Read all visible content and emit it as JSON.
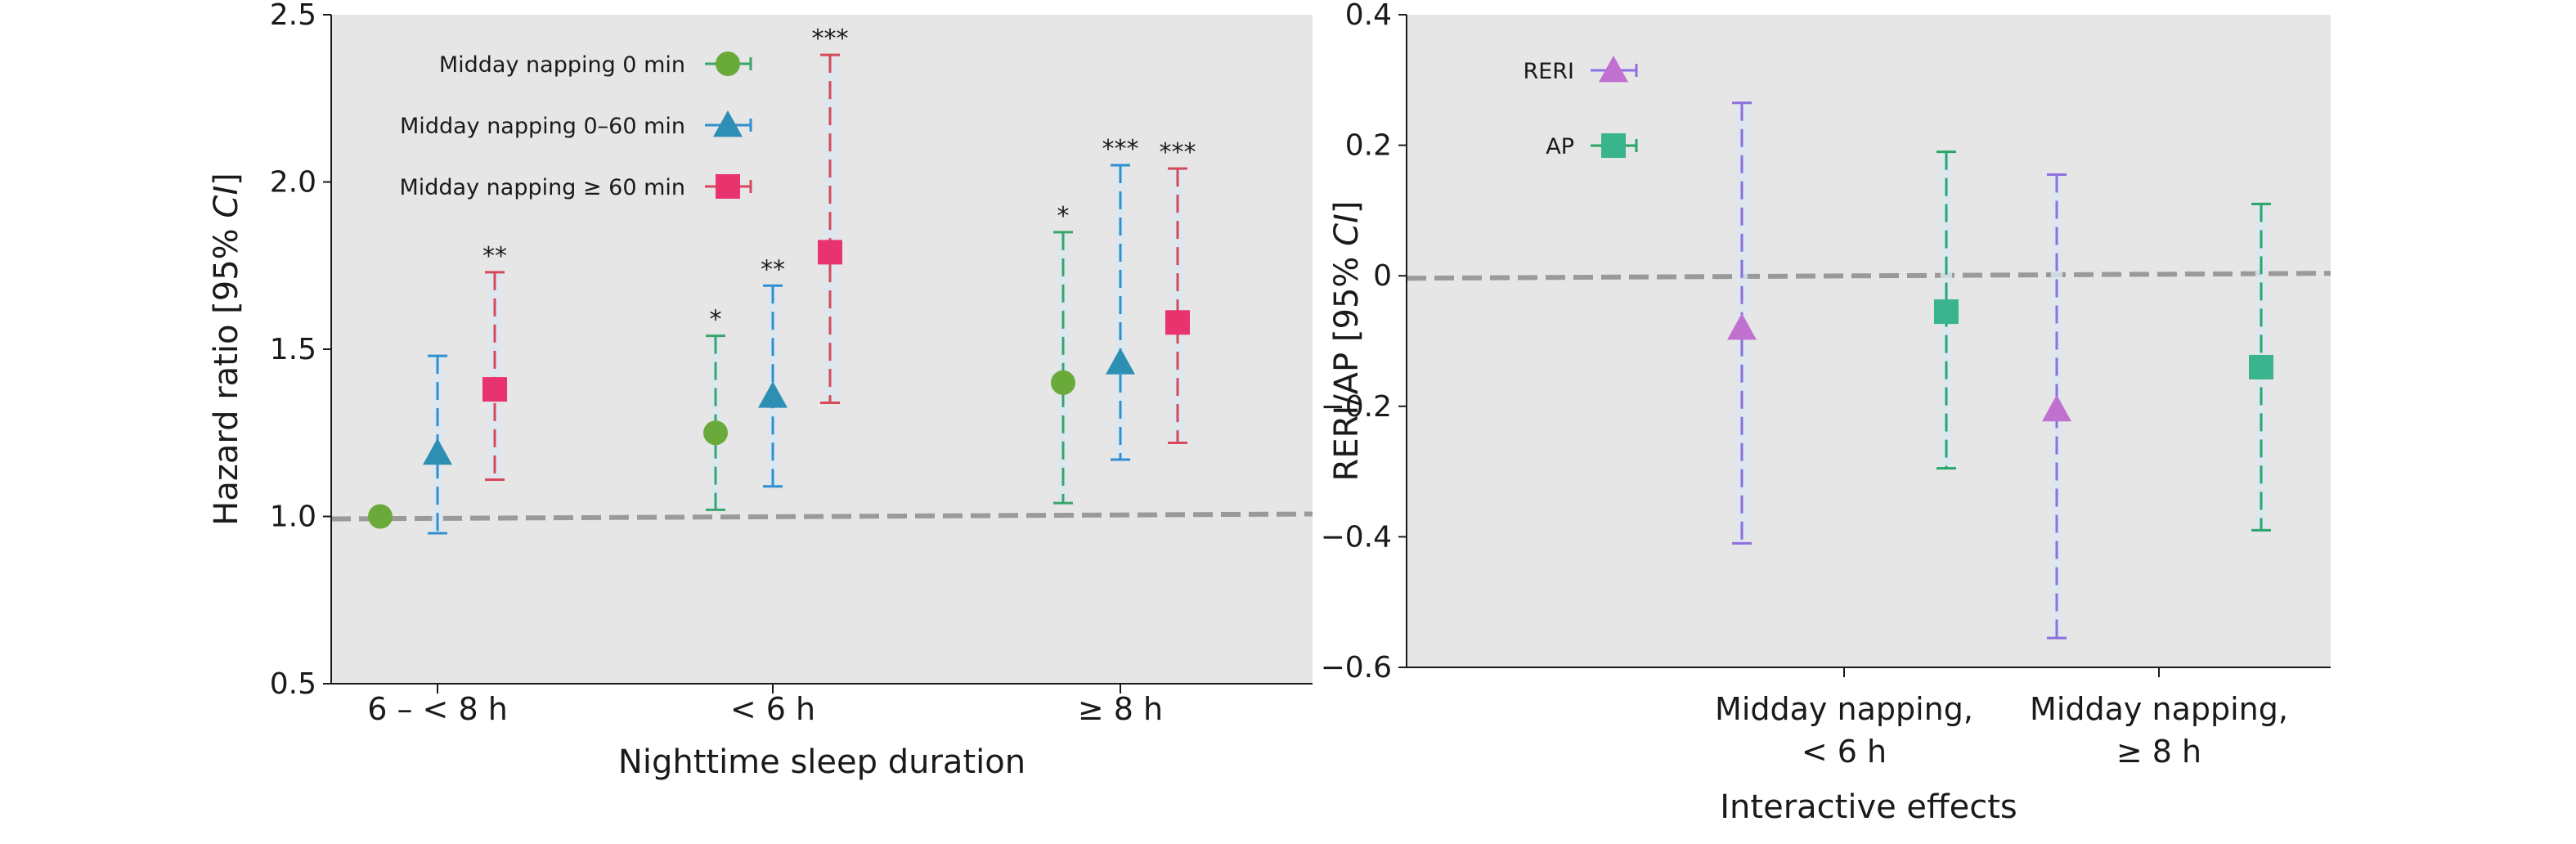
{
  "chart_data": [
    {
      "type": "scatter",
      "subtype": "error-bar plot",
      "xlabel": "Nighttime sleep duration",
      "ylabel_prefix": "Hazard ratio [95% ",
      "ylabel_italic": "CI",
      "ylabel_suffix": "]",
      "categories": [
        "6 – < 8 h",
        "< 6 h",
        "≥ 8 h"
      ],
      "ylim": [
        0.5,
        2.5
      ],
      "yticks": [
        "0.5",
        "1.0",
        "1.5",
        "2.0",
        "2.5"
      ],
      "reference_line": 1.0,
      "background_color": "#e6e6e6",
      "legend_position": "top-left",
      "series": [
        {
          "name": "Midday napping 0 min",
          "marker": "circle",
          "color": "#6aaa3a",
          "errorbar_color": "#3aa56a",
          "values": [
            1.0,
            1.25,
            1.4
          ],
          "lower": [
            1.0,
            1.02,
            1.04
          ],
          "upper": [
            1.0,
            1.54,
            1.85
          ],
          "significance": [
            "",
            "*",
            "*"
          ]
        },
        {
          "name": "Midday napping 0–60 min",
          "marker": "triangle",
          "color": "#2e8fb4",
          "errorbar_color": "#2f8fd0",
          "values": [
            1.19,
            1.36,
            1.46
          ],
          "lower": [
            0.95,
            1.09,
            1.17
          ],
          "upper": [
            1.48,
            1.69,
            2.05
          ],
          "significance": [
            "",
            "**",
            "***"
          ]
        },
        {
          "name": "Midday napping ≥ 60 min",
          "marker": "square",
          "color": "#e8336f",
          "errorbar_color": "#d6485a",
          "values": [
            1.38,
            1.79,
            1.58
          ],
          "lower": [
            1.11,
            1.34,
            1.22
          ],
          "upper": [
            1.73,
            2.38,
            2.04
          ],
          "significance": [
            "**",
            "***",
            "***"
          ]
        }
      ]
    },
    {
      "type": "scatter",
      "subtype": "error-bar plot",
      "xlabel": "Interactive effects",
      "ylabel_prefix": "RERI/AP [95% ",
      "ylabel_italic": "CI",
      "ylabel_suffix": "]",
      "categories": [
        [
          "Midday napping,",
          "< 6 h"
        ],
        [
          "Midday napping,",
          "≥ 8 h"
        ]
      ],
      "ylim": [
        -0.6,
        0.4
      ],
      "yticks": [
        "−0.6",
        "−0.4",
        "−0.2",
        "0",
        "0.2",
        "0.4"
      ],
      "reference_line": 0,
      "background_color": "#e6e6e6",
      "legend_position": "top-left",
      "series": [
        {
          "name": "RERI",
          "marker": "triangle",
          "color": "#c071d0",
          "errorbar_color": "#8c6fe0",
          "values": [
            -0.08,
            -0.205
          ],
          "lower": [
            -0.41,
            -0.555
          ],
          "upper": [
            0.265,
            0.155
          ]
        },
        {
          "name": "AP",
          "marker": "square",
          "color": "#3ab48c",
          "errorbar_color": "#2aa56a",
          "values": [
            -0.055,
            -0.14
          ],
          "lower": [
            -0.295,
            -0.39
          ],
          "upper": [
            0.19,
            0.11
          ]
        }
      ]
    }
  ]
}
